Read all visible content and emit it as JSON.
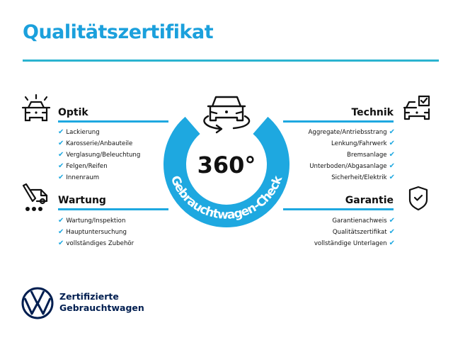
{
  "title": "Qualitätszertifikat",
  "colors": {
    "accent": "#1ea8e0",
    "title": "#1ba0dc",
    "brand": "#001e50"
  },
  "center": {
    "big_text": "360°",
    "ring_text": "Gebrauchtwagen-Check",
    "icon": "car-rotate-icon"
  },
  "sections": {
    "optik": {
      "heading": "Optik",
      "icon": "car-lights-icon",
      "items": [
        "Lackierung",
        "Karosserie/Anbauteile",
        "Verglasung/Beleuchtung",
        "Felgen/Reifen",
        "Innenraum"
      ]
    },
    "wartung": {
      "heading": "Wartung",
      "icon": "service-tools-icon",
      "items": [
        "Wartung/Inspektion",
        "Hauptuntersuchung",
        "vollständiges Zubehör"
      ]
    },
    "technik": {
      "heading": "Technik",
      "icon": "car-checkbox-icon",
      "items": [
        "Aggregate/Antriebsstrang",
        "Lenkung/Fahrwerk",
        "Bremsanlage",
        "Unterboden/Abgasanlage",
        "Sicherheit/Elektrik"
      ]
    },
    "garantie": {
      "heading": "Garantie",
      "icon": "shield-check-icon",
      "items": [
        "Garantienachweis",
        "Qualitätszertifikat",
        "vollständige Unterlagen"
      ]
    }
  },
  "check_glyph": "✔",
  "logo": {
    "line1": "Zertifizierte",
    "line2": "Gebrauchtwagen",
    "icon": "vw-logo-icon"
  }
}
